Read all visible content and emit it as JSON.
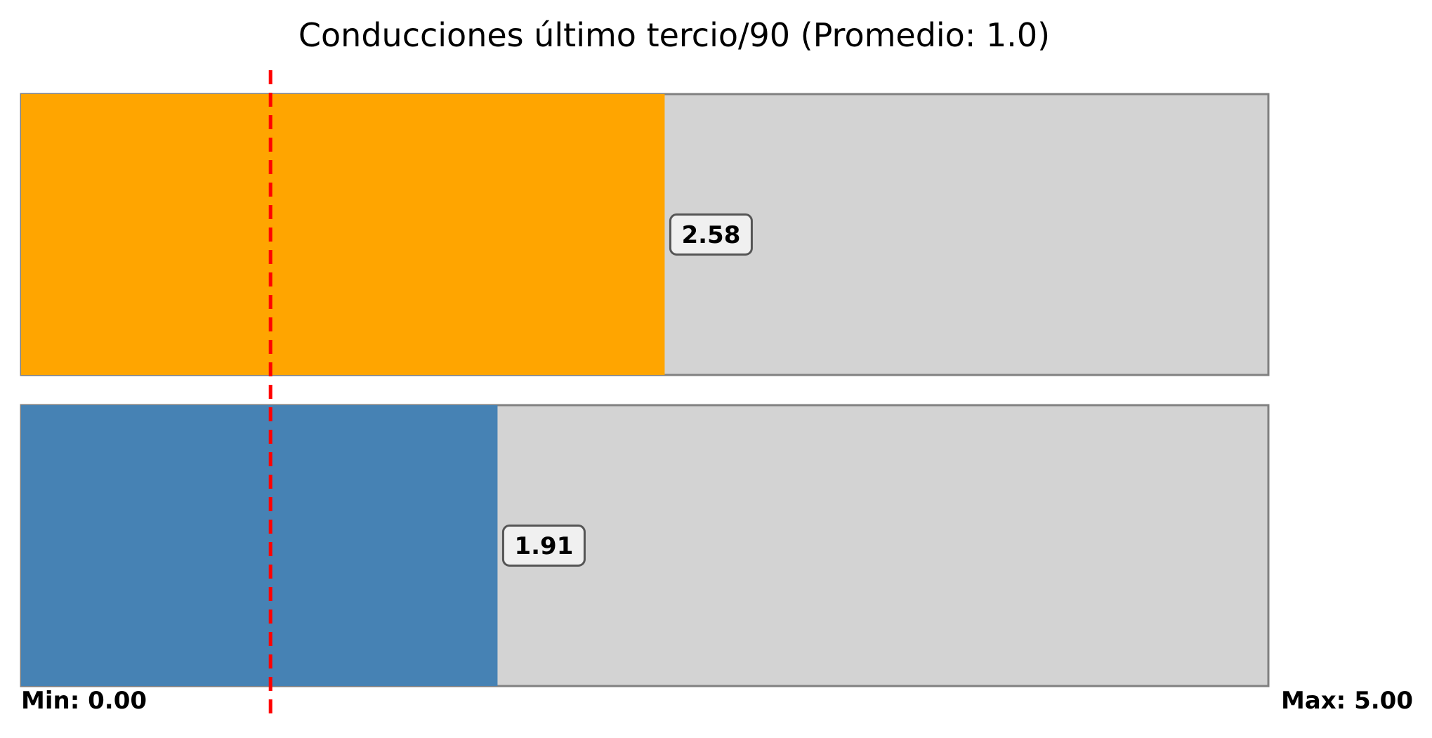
{
  "chart_data": {
    "type": "bar",
    "orientation": "horizontal",
    "title": "Conducciones último tercio/90 (Promedio: 1.0)",
    "xlim": [
      0,
      5
    ],
    "series": [
      {
        "value": 2.58,
        "value_label": "2.58",
        "color": "#FFA500"
      },
      {
        "value": 1.91,
        "value_label": "1.91",
        "color": "#4682B4"
      }
    ],
    "average": 1.0,
    "average_line_color": "#FF0000",
    "track_color": "#D3D3D3",
    "track_border_color": "#808080",
    "min_label": "Min: 0.00",
    "max_label": "Max: 5.00",
    "grid": false
  }
}
